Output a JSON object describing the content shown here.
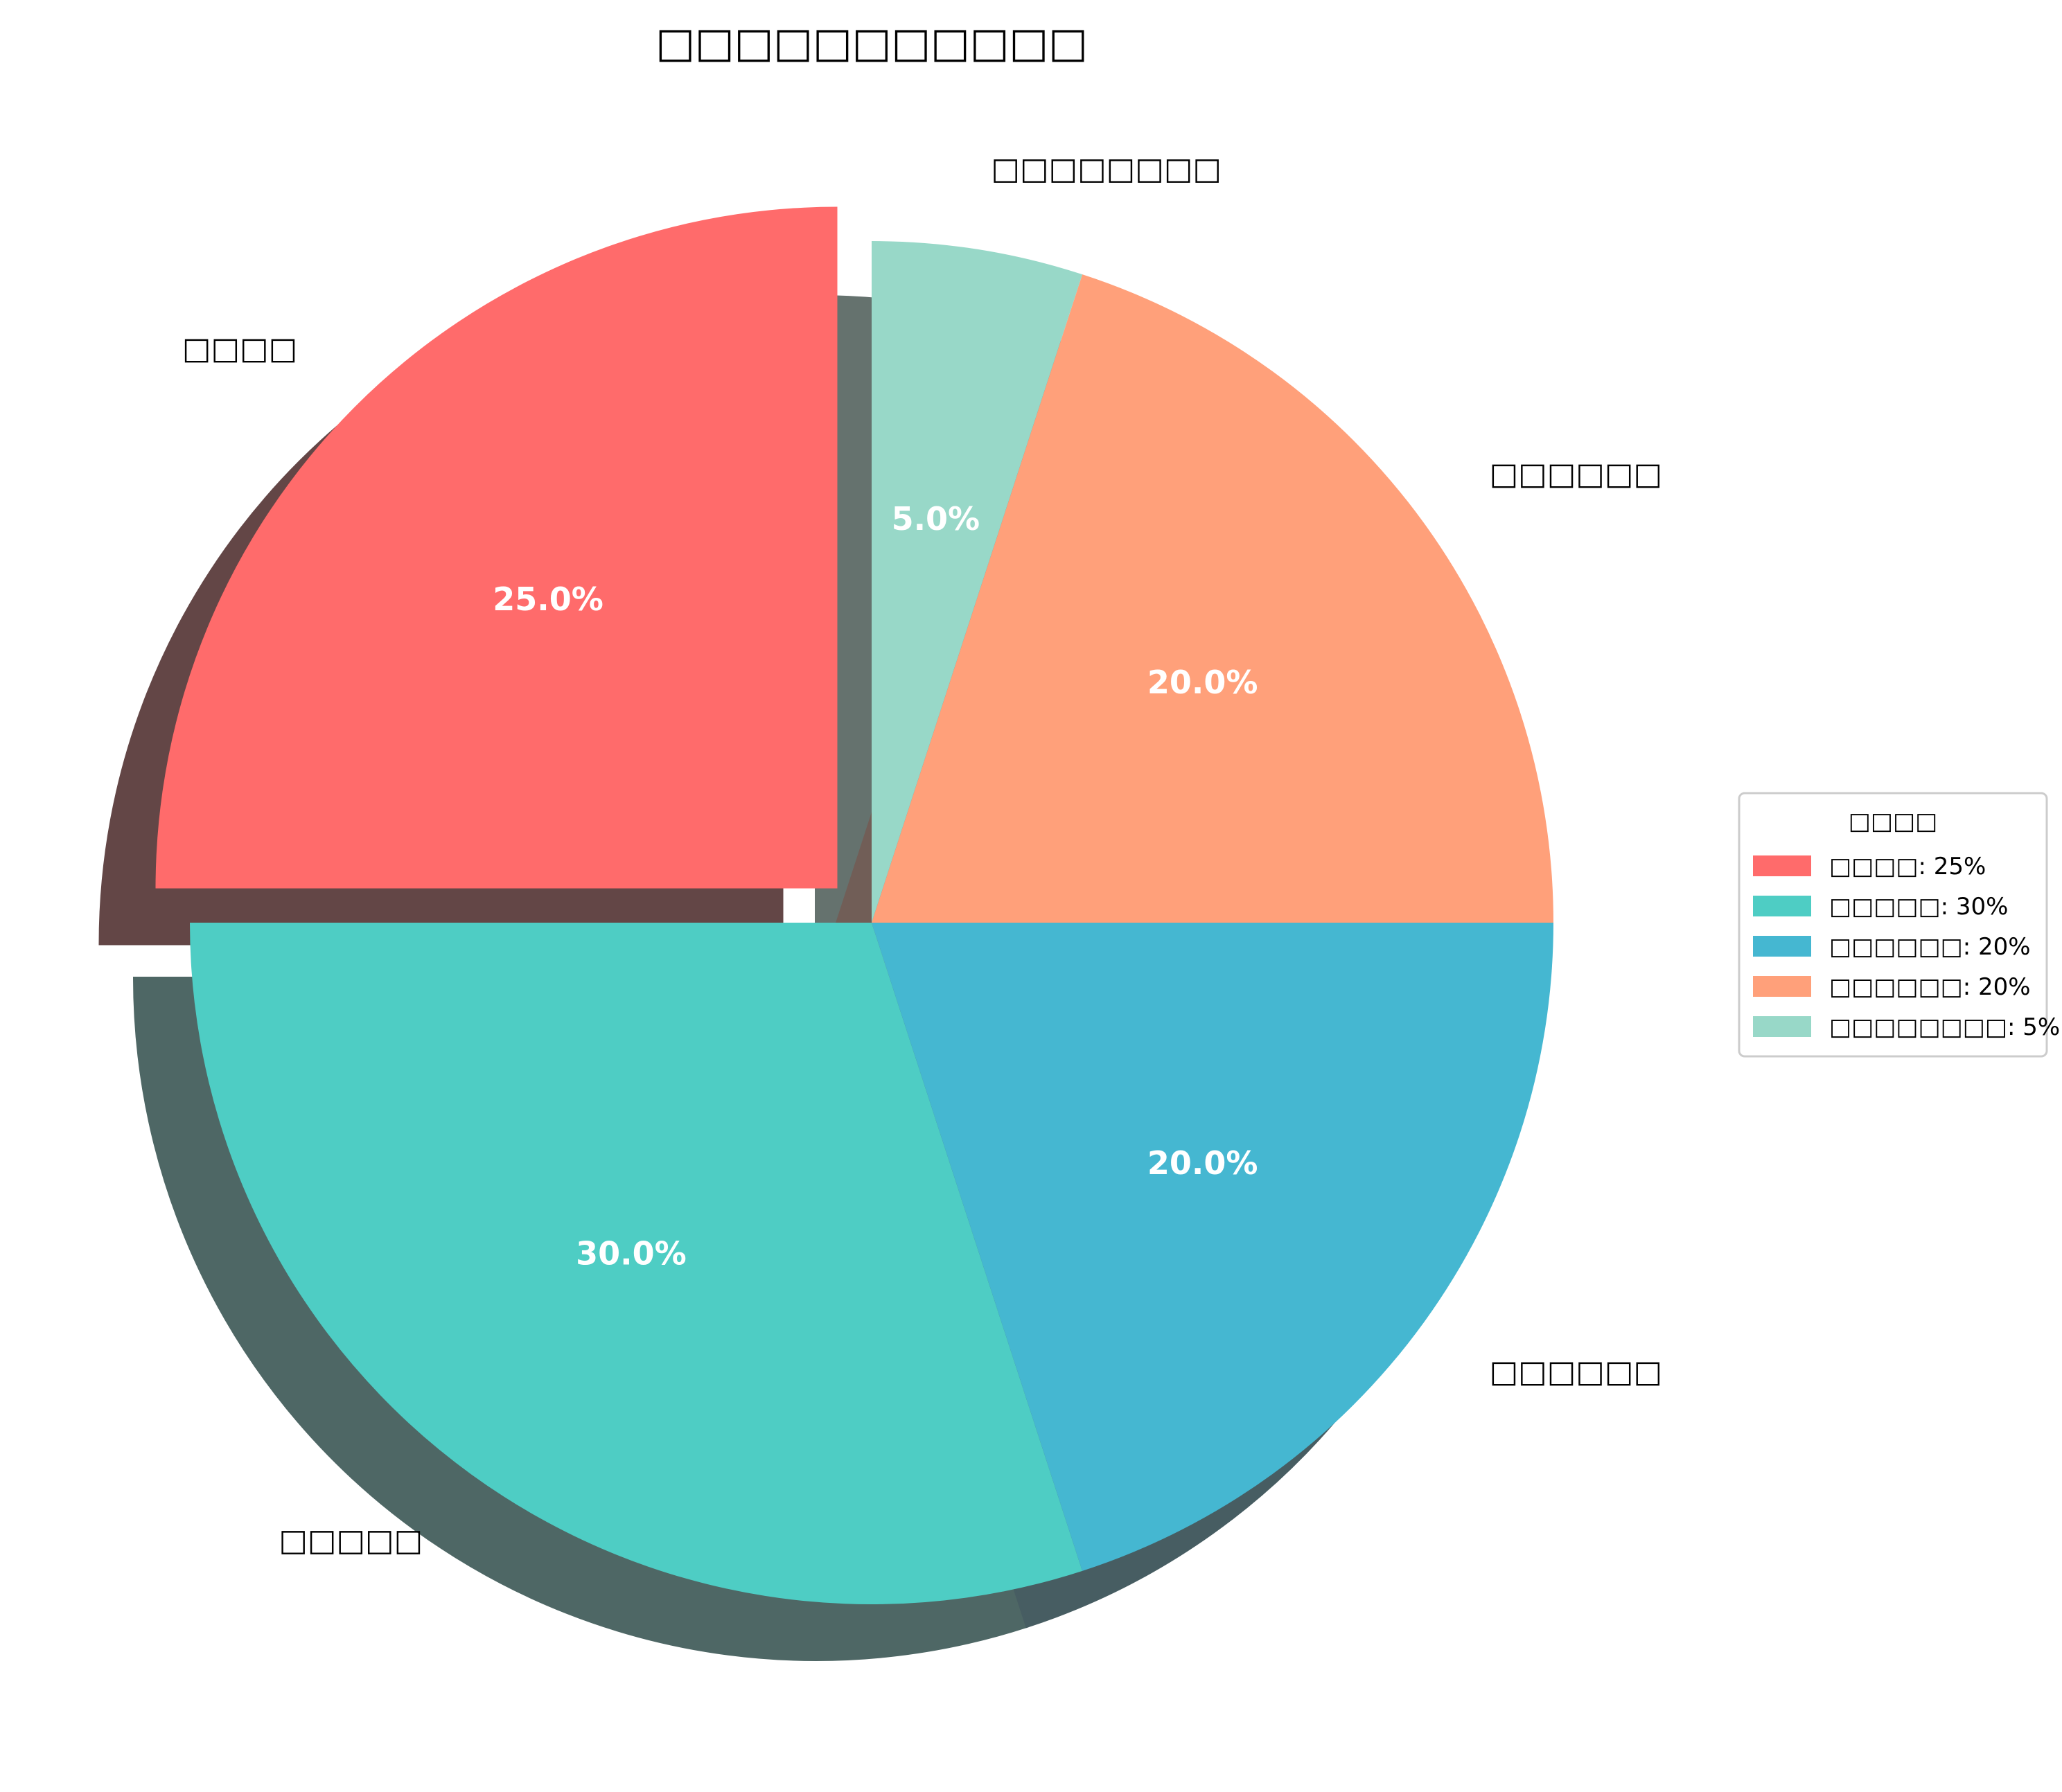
{
  "chart_data": {
    "type": "pie",
    "title": "□□□□□□□□□□□",
    "slices": [
      {
        "label": "□□□□",
        "value": 25,
        "pct_label": "25.0%",
        "color": "#FF6B6B",
        "exploded": true
      },
      {
        "label": "□□□□□",
        "value": 30,
        "pct_label": "30.0%",
        "color": "#4ECDC4",
        "exploded": false
      },
      {
        "label": "□□□□□□",
        "value": 20,
        "pct_label": "20.0%",
        "color": "#45B7D1",
        "exploded": false
      },
      {
        "label": "□□□□□□",
        "value": 20,
        "pct_label": "20.0%",
        "color": "#FFA07A",
        "exploded": false
      },
      {
        "label": "□□□□□□□□",
        "value": 5,
        "pct_label": "5.0%",
        "color": "#98D8C8",
        "exploded": false
      }
    ],
    "start_angle_deg": 90,
    "direction": "counterclockwise",
    "shadow": true,
    "legend": {
      "title": "□□□□",
      "placement": "right",
      "entries": [
        "□□□□: 25%",
        "□□□□□: 30%",
        "□□□□□□: 20%",
        "□□□□□□: 20%",
        "□□□□□□□□: 5%"
      ]
    }
  }
}
